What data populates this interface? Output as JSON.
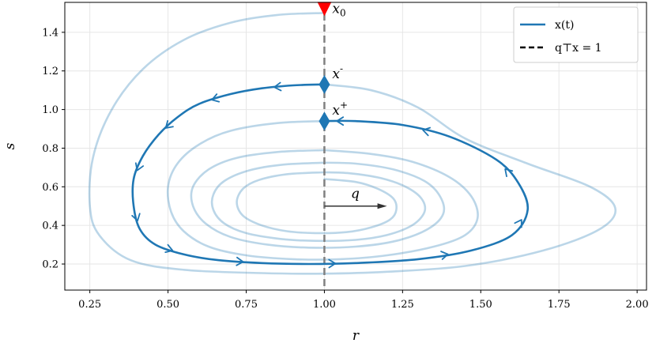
{
  "chart_data": {
    "type": "line",
    "title": "",
    "xlabel": "r",
    "ylabel": "s",
    "xlim": [
      0.17,
      2.03
    ],
    "ylim": [
      0.065,
      1.555
    ],
    "xticks": [
      "0.25",
      "0.50",
      "0.75",
      "1.00",
      "1.25",
      "1.50",
      "1.75",
      "2.00"
    ],
    "yticks": [
      "0.2",
      "0.4",
      "0.6",
      "0.8",
      "1.0",
      "1.2",
      "1.4"
    ],
    "grid": true,
    "legend_position": "top-right",
    "legend": [
      {
        "label": "x(t)",
        "style": "solid",
        "color": "#1f77b4"
      },
      {
        "label": "q⊤x = 1",
        "style": "dashed",
        "color": "#000000"
      }
    ],
    "series": [
      {
        "name": "x(t)",
        "style": "light",
        "color": "#1f77b4",
        "points": [
          [
            1.0,
            1.5
          ],
          [
            0.85,
            1.49
          ],
          [
            0.7,
            1.45
          ],
          [
            0.55,
            1.36
          ],
          [
            0.42,
            1.21
          ],
          [
            0.32,
            1.0
          ],
          [
            0.26,
            0.75
          ],
          [
            0.25,
            0.5
          ],
          [
            0.28,
            0.35
          ],
          [
            0.38,
            0.22
          ],
          [
            0.55,
            0.17
          ],
          [
            0.8,
            0.153
          ],
          [
            1.0,
            0.15
          ],
          [
            1.2,
            0.16
          ],
          [
            1.45,
            0.19
          ],
          [
            1.7,
            0.27
          ],
          [
            1.88,
            0.38
          ],
          [
            1.93,
            0.49
          ],
          [
            1.85,
            0.6
          ],
          [
            1.65,
            0.72
          ],
          [
            1.45,
            0.85
          ],
          [
            1.3,
            1.01
          ],
          [
            1.15,
            1.1
          ],
          [
            1.0,
            1.13
          ]
        ]
      },
      {
        "name": "x(t)",
        "style": "emphasized",
        "color": "#1f77b4",
        "arrows": true,
        "points": [
          [
            1.0,
            1.13
          ],
          [
            0.9,
            1.125
          ],
          [
            0.8,
            1.11
          ],
          [
            0.7,
            1.08
          ],
          [
            0.6,
            1.03
          ],
          [
            0.53,
            0.96
          ],
          [
            0.47,
            0.87
          ],
          [
            0.42,
            0.76
          ],
          [
            0.39,
            0.64
          ],
          [
            0.39,
            0.5
          ],
          [
            0.41,
            0.38
          ],
          [
            0.46,
            0.3
          ],
          [
            0.55,
            0.25
          ],
          [
            0.66,
            0.22
          ],
          [
            0.8,
            0.205
          ],
          [
            0.95,
            0.2
          ],
          [
            1.1,
            0.205
          ],
          [
            1.3,
            0.225
          ],
          [
            1.47,
            0.27
          ],
          [
            1.6,
            0.35
          ],
          [
            1.65,
            0.48
          ],
          [
            1.62,
            0.62
          ],
          [
            1.55,
            0.74
          ],
          [
            1.4,
            0.86
          ],
          [
            1.25,
            0.92
          ],
          [
            1.1,
            0.94
          ],
          [
            1.0,
            0.94
          ]
        ]
      },
      {
        "name": "x(t)",
        "style": "light",
        "color": "#1f77b4",
        "points": [
          [
            1.0,
            0.94
          ],
          [
            0.85,
            0.93
          ],
          [
            0.7,
            0.89
          ],
          [
            0.6,
            0.82
          ],
          [
            0.53,
            0.72
          ],
          [
            0.5,
            0.6
          ],
          [
            0.51,
            0.47
          ],
          [
            0.55,
            0.37
          ],
          [
            0.63,
            0.29
          ],
          [
            0.75,
            0.245
          ],
          [
            0.9,
            0.225
          ],
          [
            1.05,
            0.225
          ],
          [
            1.2,
            0.245
          ],
          [
            1.35,
            0.29
          ],
          [
            1.45,
            0.35
          ],
          [
            1.49,
            0.44
          ],
          [
            1.47,
            0.55
          ],
          [
            1.4,
            0.65
          ],
          [
            1.28,
            0.73
          ],
          [
            1.15,
            0.77
          ],
          [
            1.0,
            0.79
          ]
        ]
      },
      {
        "name": "x(t)",
        "style": "light",
        "color": "#1f77b4",
        "points": [
          [
            1.0,
            0.79
          ],
          [
            0.85,
            0.78
          ],
          [
            0.72,
            0.75
          ],
          [
            0.63,
            0.69
          ],
          [
            0.58,
            0.6
          ],
          [
            0.58,
            0.5
          ],
          [
            0.62,
            0.41
          ],
          [
            0.7,
            0.34
          ],
          [
            0.82,
            0.3
          ],
          [
            0.95,
            0.285
          ],
          [
            1.1,
            0.29
          ],
          [
            1.23,
            0.32
          ],
          [
            1.33,
            0.38
          ],
          [
            1.38,
            0.46
          ],
          [
            1.37,
            0.55
          ],
          [
            1.32,
            0.63
          ],
          [
            1.22,
            0.69
          ],
          [
            1.1,
            0.72
          ],
          [
            1.0,
            0.725
          ]
        ]
      },
      {
        "name": "x(t)",
        "style": "light",
        "color": "#1f77b4",
        "points": [
          [
            1.0,
            0.725
          ],
          [
            0.87,
            0.715
          ],
          [
            0.76,
            0.685
          ],
          [
            0.68,
            0.63
          ],
          [
            0.645,
            0.56
          ],
          [
            0.645,
            0.48
          ],
          [
            0.68,
            0.41
          ],
          [
            0.75,
            0.36
          ],
          [
            0.86,
            0.33
          ],
          [
            0.97,
            0.32
          ],
          [
            1.1,
            0.325
          ],
          [
            1.2,
            0.35
          ],
          [
            1.28,
            0.4
          ],
          [
            1.32,
            0.47
          ],
          [
            1.31,
            0.54
          ],
          [
            1.26,
            0.6
          ],
          [
            1.18,
            0.645
          ],
          [
            1.08,
            0.67
          ],
          [
            1.0,
            0.675
          ]
        ]
      },
      {
        "name": "x(t)",
        "style": "light",
        "color": "#1f77b4",
        "points": [
          [
            1.0,
            0.675
          ],
          [
            0.88,
            0.665
          ],
          [
            0.79,
            0.635
          ],
          [
            0.74,
            0.59
          ],
          [
            0.72,
            0.52
          ],
          [
            0.74,
            0.45
          ],
          [
            0.8,
            0.4
          ],
          [
            0.88,
            0.37
          ],
          [
            0.97,
            0.36
          ],
          [
            1.07,
            0.365
          ],
          [
            1.15,
            0.39
          ],
          [
            1.21,
            0.43
          ],
          [
            1.23,
            0.48
          ],
          [
            1.22,
            0.54
          ],
          [
            1.17,
            0.59
          ],
          [
            1.1,
            0.625
          ],
          [
            1.0,
            0.64
          ]
        ]
      }
    ],
    "markers": [
      {
        "label": "x_0",
        "x": 1.0,
        "y": 1.5,
        "shape": "triangle-down",
        "color": "#ff0000"
      },
      {
        "label": "x^-",
        "x": 1.0,
        "y": 1.13,
        "shape": "diamond",
        "color": "#1f77b4"
      },
      {
        "label": "x^+",
        "x": 1.0,
        "y": 0.94,
        "shape": "diamond",
        "color": "#1f77b4"
      }
    ],
    "vline": {
      "x": 1.0,
      "style": "dashed",
      "color": "#808080"
    },
    "vector": {
      "label": "q",
      "from": [
        1.0,
        0.5
      ],
      "to": [
        1.2,
        0.5
      ]
    }
  }
}
